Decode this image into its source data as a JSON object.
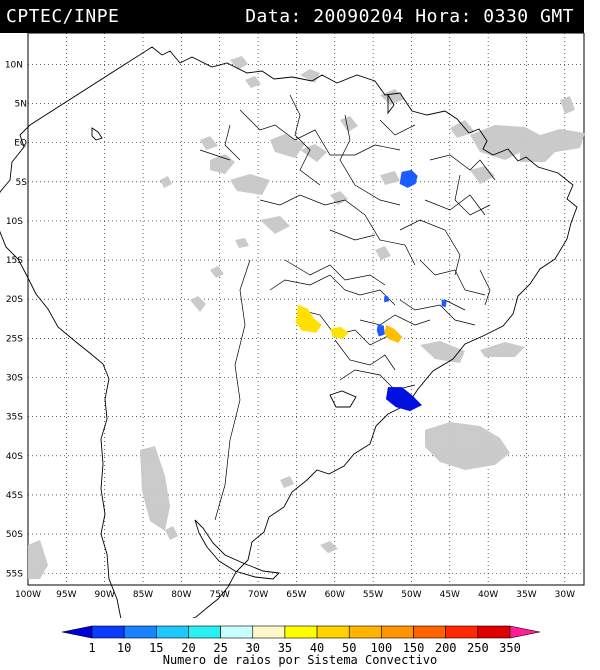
{
  "header": {
    "source": "CPTEC/INPE",
    "data_label": "Data:",
    "date": "20090204",
    "hora_label": "Hora:",
    "time": "0330 GMT"
  },
  "map": {
    "lat_labels": [
      "10N",
      "5N",
      "EQ",
      "5S",
      "10S",
      "15S",
      "20S",
      "25S",
      "30S",
      "35S",
      "40S",
      "45S",
      "50S",
      "55S"
    ],
    "lon_labels": [
      "100W",
      "95W",
      "90W",
      "85W",
      "80W",
      "75W",
      "70W",
      "65W",
      "60W",
      "55W",
      "50W",
      "45W",
      "40W",
      "35W",
      "30W"
    ]
  },
  "colorbar": {
    "title": "Numero de raios por Sistema Convectivo",
    "ticks": [
      "1",
      "10",
      "15",
      "20",
      "25",
      "30",
      "35",
      "40",
      "50",
      "100",
      "150",
      "200",
      "250",
      "350"
    ],
    "colors": [
      "#0000d8",
      "#0a3cff",
      "#1a82ff",
      "#1ec8ff",
      "#29f0f0",
      "#c8ffff",
      "#fff8c8",
      "#ffff00",
      "#ffd200",
      "#ffb400",
      "#ff9600",
      "#ff6400",
      "#ff2800",
      "#e00000",
      "#ff1e96"
    ]
  },
  "convective_systems": [
    {
      "lon": -50.5,
      "lat": -4.5,
      "color": "#1a5cff"
    },
    {
      "lon": -63.5,
      "lat": -22.5,
      "color": "#ffe000"
    },
    {
      "lon": -59.5,
      "lat": -24.3,
      "color": "#ffe000"
    },
    {
      "lon": -54.0,
      "lat": -24.0,
      "color": "#1a5cff"
    },
    {
      "lon": -52.5,
      "lat": -24.3,
      "color": "#ffbf00"
    },
    {
      "lon": -51.5,
      "lat": -32.5,
      "color": "#0010e0"
    },
    {
      "lon": -53.3,
      "lat": -20.0,
      "color": "#1a5cff"
    },
    {
      "lon": -45.8,
      "lat": -20.5,
      "color": "#1a5cff"
    }
  ]
}
